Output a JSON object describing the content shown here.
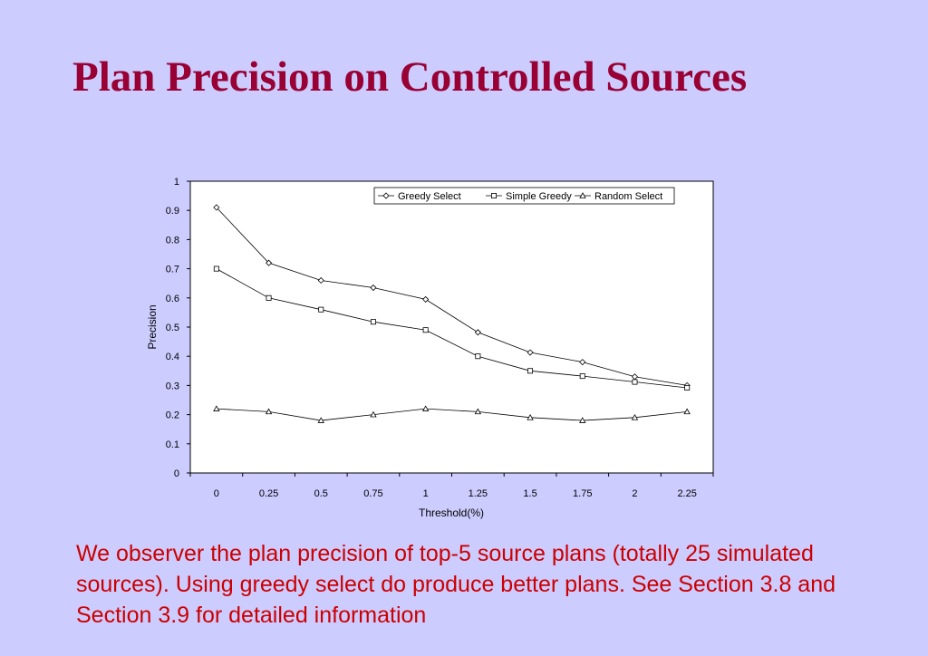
{
  "slide": {
    "title": "Plan Precision on Controlled Sources",
    "caption": "We observer the plan precision of top-5 source plans (totally 25 simulated sources). Using greedy select do produce better plans. See Section 3.8 and Section 3.9 for detailed information"
  },
  "colors": {
    "background": "#ccccff",
    "title": "#990033",
    "caption": "#cc0000",
    "plot_area": "#ffffff",
    "series_line": "#000000"
  },
  "chart_data": {
    "type": "line",
    "title": "",
    "xlabel": "Threshold(%)",
    "ylabel": "Precision",
    "x": [
      "0",
      "0.25",
      "0.5",
      "0.75",
      "1",
      "1.25",
      "1.5",
      "1.75",
      "2",
      "2.25"
    ],
    "ylim": [
      0,
      1
    ],
    "y_ticks": [
      "0",
      "0.1",
      "0.2",
      "0.3",
      "0.4",
      "0.5",
      "0.6",
      "0.7",
      "0.8",
      "0.9",
      "1"
    ],
    "grid": false,
    "legend_position": "top-right",
    "series": [
      {
        "name": "Greedy Select",
        "marker": "diamond",
        "values": [
          0.91,
          0.72,
          0.66,
          0.635,
          0.595,
          0.482,
          0.413,
          0.38,
          0.33,
          0.3
        ]
      },
      {
        "name": "Simple Greedy",
        "marker": "square",
        "values": [
          0.7,
          0.6,
          0.56,
          0.518,
          0.49,
          0.4,
          0.35,
          0.332,
          0.312,
          0.292
        ]
      },
      {
        "name": "Random Select",
        "marker": "triangle",
        "values": [
          0.22,
          0.21,
          0.18,
          0.2,
          0.22,
          0.21,
          0.19,
          0.18,
          0.19,
          0.21
        ]
      }
    ]
  }
}
